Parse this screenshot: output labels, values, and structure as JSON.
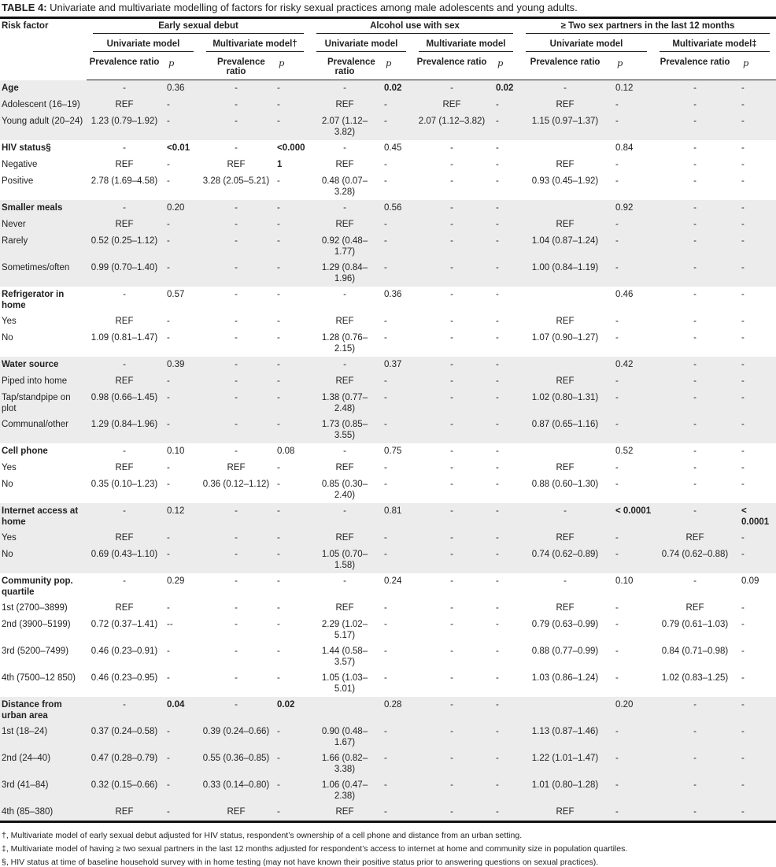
{
  "title": {
    "label": "TABLE 4:",
    "text": "Univariate and multivariate modelling of factors for risky sexual practices among male adolescents and young adults."
  },
  "header": {
    "risk_factor": "Risk factor",
    "outcomes": [
      "Early sexual debut",
      "Alcohol use with sex",
      "≥ Two sex partners in the last 12 months"
    ],
    "models": [
      "Univariate model",
      "Multivariate model†",
      "Univariate model",
      "Multivariate model",
      "Univariate model",
      "Multivariate model‡"
    ],
    "prevalence_ratio": "Prevalence ratio",
    "p": "p"
  },
  "groups": [
    {
      "shaded": true,
      "rows": [
        {
          "cells": [
            "Age",
            "-",
            "0.36",
            "-",
            "-",
            "-",
            "0.02",
            "-",
            "0.02",
            "-",
            "0.12",
            "-",
            "-"
          ],
          "bold": [
            0,
            6,
            8
          ]
        },
        {
          "cells": [
            "Adolescent (16–19)",
            "REF",
            "-",
            "-",
            "-",
            "REF",
            "-",
            "REF",
            "-",
            "REF",
            "-",
            "-",
            "-"
          ],
          "bold": []
        },
        {
          "cells": [
            "Young adult (20–24)",
            "1.23 (0.79–1.92)",
            "-",
            "-",
            "-",
            "2.07 (1.12–3.82)",
            "-",
            "2.07 (1.12–3.82)",
            "-",
            "1.15 (0.97–1.37)",
            "-",
            "-",
            "-"
          ],
          "bold": []
        }
      ]
    },
    {
      "shaded": false,
      "rows": [
        {
          "cells": [
            "HIV status§",
            "-",
            "<0.01",
            "-",
            "<0.000",
            "-",
            "0.45",
            "-",
            "-",
            "",
            "0.84",
            "-",
            "-"
          ],
          "bold": [
            0,
            2,
            4
          ]
        },
        {
          "cells": [
            "Negative",
            "REF",
            "-",
            "REF",
            "1",
            "REF",
            "-",
            "-",
            "-",
            "REF",
            "-",
            "-",
            "-"
          ],
          "bold": [
            4
          ]
        },
        {
          "cells": [
            "Positive",
            "2.78 (1.69–4.58)",
            "-",
            "3.28 (2.05–5.21)",
            "-",
            "0.48 (0.07–3.28)",
            "-",
            "-",
            "-",
            "0.93 (0.45–1.92)",
            "-",
            "-",
            "-"
          ],
          "bold": []
        }
      ]
    },
    {
      "shaded": true,
      "rows": [
        {
          "cells": [
            "Smaller meals",
            "-",
            "0.20",
            "-",
            "-",
            "-",
            "0.56",
            "-",
            "-",
            "",
            "0.92",
            "-",
            "-"
          ],
          "bold": [
            0
          ]
        },
        {
          "cells": [
            "Never",
            "REF",
            "-",
            "-",
            "-",
            "REF",
            "-",
            "-",
            "-",
            "REF",
            "-",
            "-",
            "-"
          ],
          "bold": []
        },
        {
          "cells": [
            "Rarely",
            "0.52 (0.25–1.12)",
            "-",
            "-",
            "-",
            "0.92 (0.48–1.77)",
            "-",
            "-",
            "-",
            "1.04 (0.87–1.24)",
            "-",
            "-",
            "-"
          ],
          "bold": []
        },
        {
          "cells": [
            "Sometimes/often",
            "0.99 (0.70–1.40)",
            "-",
            "-",
            "-",
            "1.29 (0.84–1.96)",
            "-",
            "-",
            "-",
            "1.00 (0.84–1.19)",
            "-",
            "-",
            "-"
          ],
          "bold": []
        }
      ]
    },
    {
      "shaded": false,
      "rows": [
        {
          "cells": [
            "Refrigerator in home",
            "-",
            "0.57",
            "-",
            "-",
            "-",
            "0.36",
            "-",
            "-",
            "",
            "0.46",
            "-",
            "-"
          ],
          "bold": [
            0
          ]
        },
        {
          "cells": [
            "Yes",
            "REF",
            "-",
            "-",
            "-",
            "REF",
            "-",
            "-",
            "-",
            "REF",
            "-",
            "-",
            "-"
          ],
          "bold": []
        },
        {
          "cells": [
            "No",
            "1.09 (0.81–1.47)",
            "-",
            "-",
            "-",
            "1.28 (0.76–2.15)",
            "-",
            "-",
            "-",
            "1.07 (0.90–1.27)",
            "-",
            "-",
            "-"
          ],
          "bold": []
        }
      ]
    },
    {
      "shaded": true,
      "rows": [
        {
          "cells": [
            "Water source",
            "-",
            "0.39",
            "-",
            "-",
            "-",
            "0.37",
            "-",
            "-",
            "",
            "0.42",
            "-",
            "-"
          ],
          "bold": [
            0
          ]
        },
        {
          "cells": [
            "Piped into home",
            "REF",
            "-",
            "-",
            "-",
            "REF",
            "-",
            "-",
            "-",
            "REF",
            "-",
            "-",
            "-"
          ],
          "bold": []
        },
        {
          "cells": [
            "Tap/standpipe on plot",
            "0.98 (0.66–1.45)",
            "-",
            "-",
            "-",
            "1.38 (0.77–2.48)",
            "-",
            "-",
            "-",
            "1.02 (0.80–1.31)",
            "-",
            "-",
            "-"
          ],
          "bold": []
        },
        {
          "cells": [
            "Communal/other",
            "1.29 (0.84–1.96)",
            "-",
            "-",
            "-",
            "1.73 (0.85–3.55)",
            "-",
            "-",
            "-",
            "0.87 (0.65–1.16)",
            "-",
            "-",
            "-"
          ],
          "bold": []
        }
      ]
    },
    {
      "shaded": false,
      "rows": [
        {
          "cells": [
            "Cell phone",
            "-",
            "0.10",
            "-",
            "0.08",
            "-",
            "0.75",
            "-",
            "-",
            "",
            "0.52",
            "-",
            "-"
          ],
          "bold": [
            0
          ]
        },
        {
          "cells": [
            "Yes",
            "REF",
            "-",
            "REF",
            "-",
            "REF",
            "-",
            "-",
            "-",
            "REF",
            "-",
            "-",
            "-"
          ],
          "bold": []
        },
        {
          "cells": [
            "No",
            "0.35 (0.10–1.23)",
            "-",
            "0.36 (0.12–1.12)",
            "-",
            "0.85 (0.30–2.40)",
            "-",
            "-",
            "-",
            "0.88 (0.60–1.30)",
            "-",
            "-",
            "-"
          ],
          "bold": []
        }
      ]
    },
    {
      "shaded": true,
      "rows": [
        {
          "cells": [
            "Internet access at home",
            "-",
            "0.12",
            "-",
            "-",
            "-",
            "0.81",
            "-",
            "-",
            "-",
            "< 0.0001",
            "-",
            "< 0.0001"
          ],
          "bold": [
            0,
            10,
            12
          ]
        },
        {
          "cells": [
            "Yes",
            "REF",
            "-",
            "-",
            "-",
            "REF",
            "-",
            "-",
            "-",
            "REF",
            "-",
            "REF",
            "-"
          ],
          "bold": []
        },
        {
          "cells": [
            "No",
            "0.69 (0.43–1.10)",
            "-",
            "-",
            "-",
            "1.05 (0.70–1.58)",
            "-",
            "-",
            "-",
            "0.74 (0.62–0.89)",
            "-",
            "0.74 (0.62–0.88)",
            "-"
          ],
          "bold": []
        }
      ]
    },
    {
      "shaded": false,
      "rows": [
        {
          "cells": [
            "Community pop. quartile",
            "-",
            "0.29",
            "-",
            "-",
            "-",
            "0.24",
            "-",
            "-",
            "-",
            "0.10",
            "-",
            "0.09"
          ],
          "bold": [
            0
          ]
        },
        {
          "cells": [
            "1st (2700–3899)",
            "REF",
            "-",
            "-",
            "-",
            "REF",
            "-",
            "-",
            "-",
            "REF",
            "-",
            "REF",
            "-"
          ],
          "bold": []
        },
        {
          "cells": [
            "2nd (3900–5199)",
            "0.72 (0.37–1.41)",
            "--",
            "-",
            "-",
            "2.29 (1.02–5.17)",
            "-",
            "-",
            "-",
            "0.79 (0.63–0.99)",
            "-",
            "0.79 (0.61–1.03)",
            "-"
          ],
          "bold": []
        },
        {
          "cells": [
            "3rd (5200–7499)",
            "0.46 (0.23–0.91)",
            "-",
            "-",
            "-",
            "1.44 (0.58–3.57)",
            "-",
            "-",
            "-",
            "0.88 (0.77–0.99)",
            "-",
            "0.84 (0.71–0.98)",
            "-"
          ],
          "bold": []
        },
        {
          "cells": [
            "4th (7500–12 850)",
            "0.46 (0.23–0.95)",
            "-",
            "-",
            "-",
            "1.05 (1.03–5.01)",
            "-",
            "-",
            "-",
            "1.03 (0.86–1.24)",
            "-",
            "1.02 (0.83–1.25)",
            "-"
          ],
          "bold": []
        }
      ]
    },
    {
      "shaded": true,
      "rows": [
        {
          "cells": [
            "Distance from urban area",
            "-",
            "0.04",
            "-",
            "0.02",
            "",
            "0.28",
            "-",
            "-",
            "",
            "0.20",
            "-",
            "-"
          ],
          "bold": [
            0,
            2,
            4
          ]
        },
        {
          "cells": [
            "1st (18–24)",
            "0.37 (0.24–0.58)",
            "-",
            "0.39 (0.24–0.66)",
            "-",
            "0.90 (0.48–1.67)",
            "-",
            "-",
            "-",
            "1.13 (0.87–1.46)",
            "-",
            "-",
            "-"
          ],
          "bold": []
        },
        {
          "cells": [
            "2nd (24–40)",
            "0.47 (0.28–0.79)",
            "-",
            "0.55 (0.36–0.85)",
            "-",
            "1.66 (0.82–3.38)",
            "-",
            "-",
            "-",
            "1.22 (1.01–1.47)",
            "-",
            "-",
            "-"
          ],
          "bold": []
        },
        {
          "cells": [
            "3rd (41–84)",
            "0.32 (0.15–0.66)",
            "-",
            "0.33 (0.14–0.80)",
            "-",
            "1.06 (0.47–2.38)",
            "-",
            "-",
            "-",
            "1.01 (0.80–1.28)",
            "-",
            "-",
            "-"
          ],
          "bold": []
        },
        {
          "cells": [
            "4th (85–380)",
            "REF",
            "-",
            "REF",
            "-",
            "REF",
            "-",
            "-",
            "-",
            "REF",
            "-",
            "-",
            "-"
          ],
          "bold": []
        }
      ]
    }
  ],
  "footnotes": [
    "†, Multivariate model of early sexual debut adjusted for HIV status, respondent’s ownership of a cell phone and distance from an urban setting.",
    "‡, Multivariate model of having ≥ two sexual partners in the last 12 months adjusted for respondent’s access to internet at home and community size in population quartiles.",
    "§, HIV status at time of baseline household survey with in home testing (may not have known their positive status prior to answering questions on sexual practices)."
  ],
  "colors": {
    "shaded_row": "#ececec",
    "rule": "#111111"
  }
}
